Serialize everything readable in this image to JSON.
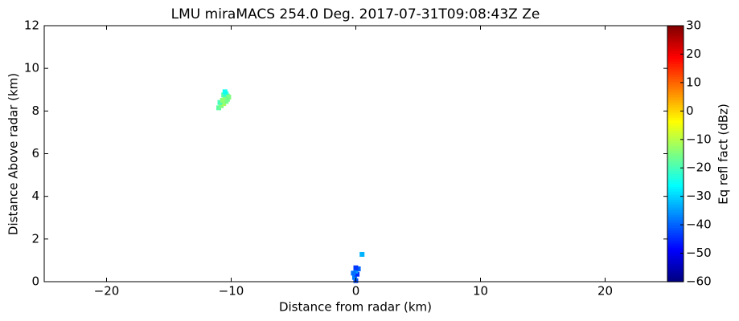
{
  "chart_data": {
    "type": "scatter",
    "title": "LMU miraMACS 254.0 Deg. 2017-07-31T09:08:43Z  Ze",
    "x_label": "Distance from radar (km)",
    "y_label": "Distance Above radar  (km)",
    "colorbar_label": "Eq refl fact (dBz)",
    "colormap": "jet",
    "x": [
      -11.0,
      -10.8,
      -10.6,
      -10.4,
      -10.9,
      -10.7,
      -10.5,
      -10.3,
      -10.6,
      -10.4,
      -10.2,
      -10.5,
      -10.3,
      0.0,
      -0.1,
      0.1,
      0.0,
      0.2,
      0.0,
      -0.2,
      0.5
    ],
    "y": [
      8.15,
      8.25,
      8.35,
      8.45,
      8.4,
      8.5,
      8.6,
      8.7,
      8.75,
      8.8,
      8.65,
      8.9,
      8.55,
      0.05,
      0.2,
      0.35,
      0.5,
      0.6,
      0.65,
      0.4,
      1.28
    ],
    "values": [
      -18,
      -15,
      -12,
      -16,
      -20,
      -14,
      -13,
      -17,
      -19,
      -22,
      -15,
      -25,
      -16,
      -42,
      -38,
      -45,
      -35,
      -40,
      -44,
      -39,
      -33
    ],
    "xlim": [
      -25,
      25
    ],
    "xticks": [
      {
        "value": -20,
        "label": "−20"
      },
      {
        "value": -10,
        "label": "−10"
      },
      0,
      10,
      20
    ],
    "ylim": [
      0,
      12
    ],
    "yticks": [
      0,
      2,
      4,
      6,
      8,
      10,
      12
    ],
    "clim": [
      -60,
      30
    ],
    "cticks": [
      {
        "value": -60,
        "label": "−60"
      },
      {
        "value": -50,
        "label": "−50"
      },
      {
        "value": -40,
        "label": "−40"
      },
      {
        "value": -30,
        "label": "−30"
      },
      {
        "value": -20,
        "label": "−20"
      },
      {
        "value": -10,
        "label": "−10"
      },
      0,
      10,
      20,
      30
    ]
  }
}
